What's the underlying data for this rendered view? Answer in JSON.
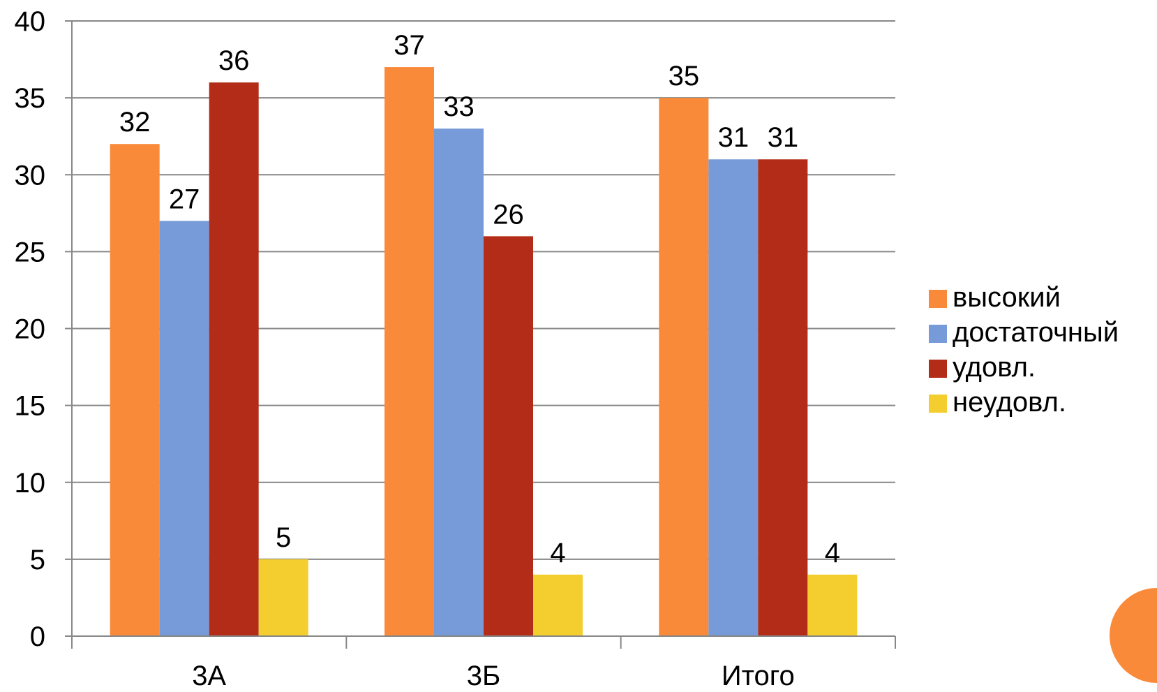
{
  "chart_data": {
    "type": "bar",
    "categories": [
      "3А",
      "3Б",
      "Итого"
    ],
    "series": [
      {
        "name": "высокий",
        "values": [
          32,
          37,
          35
        ],
        "color": "#F98A3A"
      },
      {
        "name": "достаточный",
        "values": [
          27,
          33,
          31
        ],
        "color": "#779BD8"
      },
      {
        "name": "удовл.",
        "values": [
          36,
          26,
          31
        ],
        "color": "#B22C17"
      },
      {
        "name": "неудовл.",
        "values": [
          5,
          4,
          4
        ],
        "color": "#F4CE2E"
      }
    ],
    "ylim": [
      0,
      40
    ],
    "yticks": [
      "0",
      "5",
      "10",
      "15",
      "20",
      "25",
      "30",
      "35",
      "40"
    ],
    "grid": true,
    "legend_position": "right",
    "data_labels": true
  },
  "decorations": {
    "corner_circle_color": "#F98A3A",
    "gridline_color": "#878787"
  }
}
